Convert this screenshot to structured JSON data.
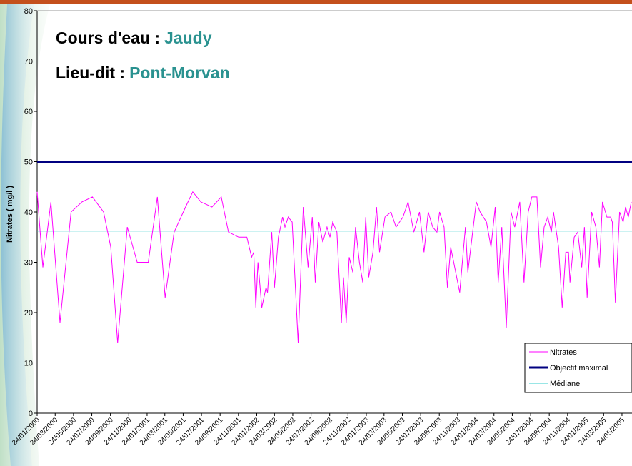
{
  "chart_data": {
    "type": "line",
    "title_lines": [
      {
        "label": "Cours d'eau :",
        "value": "Jaudy"
      },
      {
        "label": "Lieu-dit :",
        "value": "Pont-Morvan"
      }
    ],
    "y_label": "Nitrates ( mg/l )",
    "ylim": [
      0,
      80
    ],
    "yticks": [
      0,
      10,
      20,
      30,
      40,
      50,
      60,
      70,
      80
    ],
    "xlim": [
      "24/01/2000",
      "24/06/2005"
    ],
    "xticks": [
      "24/01/2000",
      "24/03/2000",
      "24/05/2000",
      "24/07/2000",
      "24/09/2000",
      "24/11/2000",
      "24/01/2001",
      "24/03/2001",
      "24/05/2001",
      "24/07/2001",
      "24/09/2001",
      "24/11/2001",
      "24/01/2002",
      "24/03/2002",
      "24/05/2002",
      "24/07/2002",
      "24/09/2002",
      "24/11/2002",
      "24/01/2003",
      "24/03/2003",
      "24/05/2003",
      "24/07/2003",
      "24/09/2003",
      "24/11/2003",
      "24/01/2004",
      "24/03/2004",
      "24/05/2004",
      "24/07/2004",
      "24/09/2004",
      "24/11/2004",
      "24/01/2005",
      "24/03/2005",
      "24/05/2005"
    ],
    "x": [
      "24/01/2000",
      "12/02/2000",
      "10/03/2000",
      "09/04/2000",
      "16/05/2000",
      "21/06/2000",
      "26/07/2000",
      "01/09/2000",
      "25/09/2000",
      "18/10/2000",
      "19/11/2000",
      "22/12/2000",
      "28/01/2001",
      "27/02/2001",
      "25/03/2001",
      "24/04/2001",
      "01/06/2001",
      "25/06/2001",
      "22/07/2001",
      "28/08/2001",
      "28/09/2001",
      "22/10/2001",
      "25/11/2001",
      "22/12/2001",
      "07/01/2002",
      "14/01/2002",
      "21/01/2002",
      "28/01/2002",
      "10/02/2002",
      "24/02/2002",
      "01/03/2002",
      "15/03/2002",
      "24/03/2002",
      "06/04/2002",
      "20/04/2002",
      "28/04/2002",
      "09/05/2002",
      "22/05/2002",
      "11/06/2002",
      "28/06/2002",
      "14/07/2002",
      "28/07/2002",
      "07/08/2002",
      "19/08/2002",
      "01/09/2002",
      "15/09/2002",
      "25/09/2002",
      "04/10/2002",
      "18/10/2002",
      "02/11/2002",
      "09/11/2002",
      "18/11/2002",
      "28/11/2002",
      "10/12/2002",
      "19/12/2002",
      "01/01/2003",
      "12/01/2003",
      "22/01/2003",
      "01/02/2003",
      "15/02/2003",
      "27/02/2003",
      "09/03/2003",
      "27/03/2003",
      "16/04/2003",
      "03/05/2003",
      "26/05/2003",
      "12/06/2003",
      "01/07/2003",
      "20/07/2003",
      "04/08/2003",
      "18/08/2003",
      "02/09/2003",
      "16/09/2003",
      "25/09/2003",
      "10/10/2003",
      "21/10/2003",
      "01/11/2003",
      "01/12/2003",
      "20/12/2003",
      "28/12/2003",
      "13/01/2004",
      "25/01/2004",
      "07/02/2004",
      "28/02/2004",
      "14/03/2004",
      "28/03/2004",
      "07/04/2004",
      "19/04/2004",
      "04/05/2004",
      "20/05/2004",
      "01/06/2004",
      "18/06/2004",
      "02/07/2004",
      "16/07/2004",
      "28/07/2004",
      "14/08/2004",
      "26/08/2004",
      "07/09/2004",
      "19/09/2004",
      "01/10/2004",
      "08/10/2004",
      "25/10/2004",
      "06/11/2004",
      "18/11/2004",
      "27/11/2004",
      "02/12/2004",
      "16/12/2004",
      "28/12/2004",
      "10/01/2005",
      "19/01/2005",
      "28/01/2005",
      "12/02/2005",
      "26/02/2005",
      "10/03/2005",
      "20/03/2005",
      "04/04/2005",
      "16/04/2005",
      "22/04/2005",
      "02/05/2005",
      "16/05/2005",
      "28/05/2005",
      "05/06/2005",
      "14/06/2005",
      "24/06/2005"
    ],
    "series": [
      {
        "name": "Nitrates",
        "color": "#ff00ff",
        "values": [
          44,
          29,
          42,
          18,
          40,
          42,
          43,
          40,
          33,
          14,
          37,
          30,
          30,
          43,
          23,
          36,
          41,
          44,
          42,
          41,
          43,
          36,
          35,
          35,
          31,
          32,
          21,
          30,
          21,
          25,
          24,
          36,
          25,
          35,
          39,
          37,
          39,
          38,
          14,
          41,
          29,
          39,
          26,
          38,
          34,
          37,
          35,
          38,
          36,
          18,
          27,
          18,
          31,
          28,
          37,
          30,
          26,
          39,
          27,
          32,
          41,
          32,
          39,
          40,
          37,
          39,
          42,
          36,
          40,
          32,
          40,
          37,
          36,
          40,
          37,
          25,
          33,
          24,
          37,
          28,
          36,
          42,
          40,
          38,
          33,
          41,
          26,
          37,
          17,
          40,
          37,
          42,
          26,
          40,
          43,
          43,
          29,
          37,
          39,
          36,
          40,
          33,
          21,
          32,
          32,
          26,
          35,
          36,
          29,
          37,
          23,
          40,
          37,
          29,
          42,
          39,
          39,
          38,
          22,
          40,
          38,
          41,
          39,
          42
        ]
      }
    ],
    "reference_lines": [
      {
        "name": "Objectif maximal",
        "value": 50,
        "color": "#000080"
      },
      {
        "name": "Médiane",
        "value": 36.2,
        "color": "#33cccc"
      }
    ]
  }
}
